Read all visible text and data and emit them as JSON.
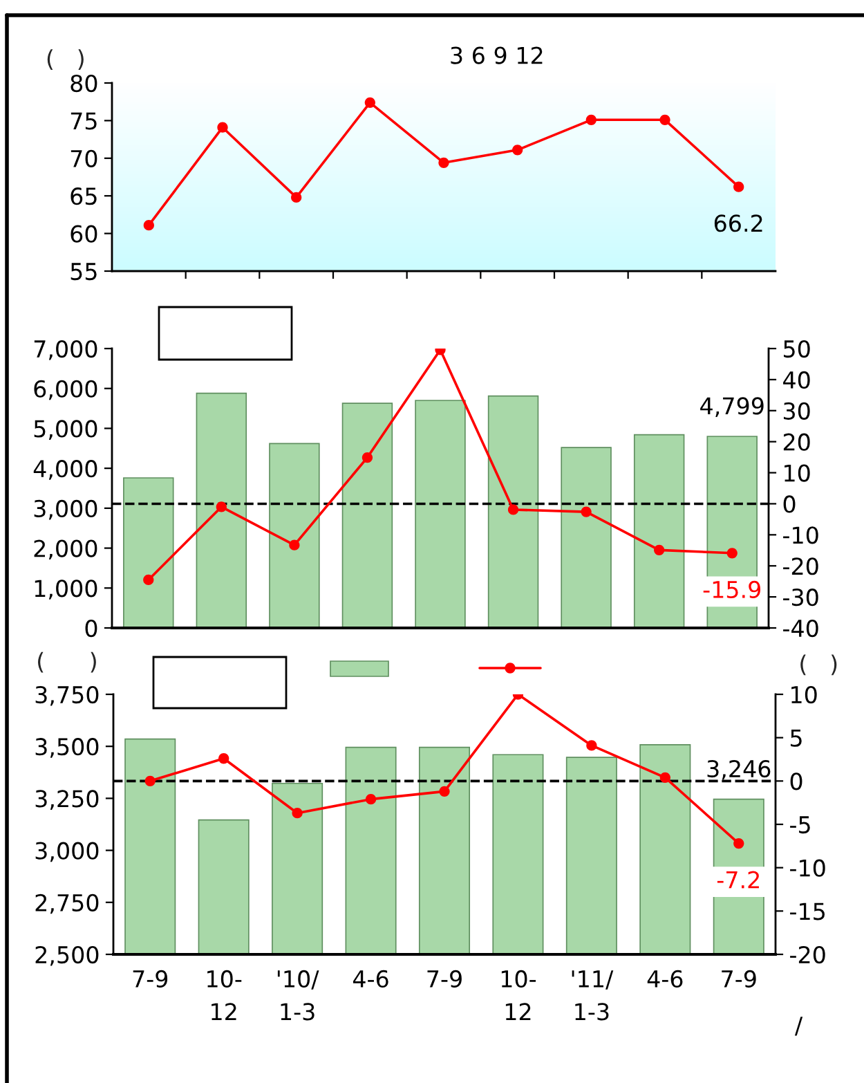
{
  "chart_data": [
    {
      "type": "line",
      "title": "3 6 9 12",
      "ylabel": "(   )",
      "categories": [
        null,
        null,
        null,
        null,
        null,
        null,
        null,
        null,
        null
      ],
      "series": [
        {
          "color": "#ff0000",
          "values": [
            61.1,
            74.1,
            64.8,
            77.4,
            69.4,
            71.1,
            75.1,
            75.1,
            66.2
          ],
          "value_labels": [
            null,
            null,
            null,
            null,
            null,
            null,
            null,
            null,
            "66.2"
          ]
        }
      ],
      "ylim": [
        55,
        80
      ],
      "yticks": [
        55,
        60,
        65,
        70,
        75,
        80
      ],
      "marker": "circle"
    },
    {
      "type": "bar",
      "categories": [
        null,
        null,
        null,
        null,
        null,
        null,
        null,
        null,
        null
      ],
      "series": [
        {
          "type": "bar",
          "color": "#a8d8a8",
          "values": [
            3760,
            5880,
            4620,
            5630,
            5700,
            5810,
            4520,
            4840,
            4799
          ],
          "value_labels": [
            null,
            null,
            null,
            null,
            null,
            null,
            null,
            null,
            "4,799"
          ]
        },
        {
          "type": "line",
          "axis": "y2",
          "color": "#ff0000",
          "values": [
            -24.5,
            -1.0,
            -13.3,
            14.9,
            49.6,
            -1.9,
            -2.6,
            -14.9,
            -15.9
          ],
          "value_labels": [
            null,
            null,
            null,
            null,
            null,
            null,
            null,
            null,
            "-15.9"
          ]
        }
      ],
      "ylim": [
        0,
        7000
      ],
      "yticks": [
        0,
        {
          "value": 1000,
          "label": "1,000"
        },
        {
          "value": 2000,
          "label": "2,000"
        },
        {
          "value": 3000,
          "label": "3,000"
        },
        {
          "value": 4000,
          "label": "4,000"
        },
        {
          "value": 5000,
          "label": "5,000"
        },
        {
          "value": 6000,
          "label": "6,000"
        },
        {
          "value": 7000,
          "label": "7,000"
        }
      ],
      "y2lim": [
        -40,
        50
      ],
      "y2ticks": [
        -40,
        -30,
        -20,
        -10,
        0,
        10,
        20,
        30,
        40,
        50
      ],
      "ref_lines": [
        {
          "axis": "y2",
          "value": 0,
          "color": "#000000",
          "line_style": "dashed"
        }
      ],
      "marker": "circle"
    },
    {
      "type": "bar",
      "ylabel": "(      )",
      "y2label": "(   )",
      "annotations": [
        "/"
      ],
      "categories": [
        "7-9",
        "10-\n12",
        "'10/\n1-3",
        "4-6",
        "7-9",
        "10-\n12",
        "'11/\n1-3",
        "4-6",
        "7-9"
      ],
      "series": [
        {
          "type": "bar",
          "color": "#a8d8a8",
          "values": [
            3535,
            3146,
            3322,
            3495,
            3495,
            3460,
            3447,
            3508,
            3246
          ],
          "value_labels": [
            null,
            null,
            null,
            null,
            null,
            null,
            null,
            null,
            "3,246"
          ]
        },
        {
          "type": "line",
          "axis": "y2",
          "color": "#ff0000",
          "values": [
            0.0,
            2.6,
            -3.7,
            -2.1,
            -1.2,
            10.0,
            4.1,
            0.4,
            -7.2
          ],
          "value_labels": [
            null,
            null,
            null,
            null,
            null,
            null,
            null,
            null,
            "-7.2"
          ]
        }
      ],
      "ylim": [
        2500,
        3750
      ],
      "yticks": [
        {
          "value": 2500,
          "label": "2,500"
        },
        {
          "value": 2750,
          "label": "2,750"
        },
        {
          "value": 3000,
          "label": "3,000"
        },
        {
          "value": 3250,
          "label": "3,250"
        },
        {
          "value": 3500,
          "label": "3,500"
        },
        {
          "value": 3750,
          "label": "3,750"
        }
      ],
      "y2lim": [
        -20,
        10
      ],
      "y2ticks": [
        -20,
        -15,
        -10,
        -5,
        0,
        5,
        10
      ],
      "ref_lines": [
        {
          "axis": "y2",
          "value": 0,
          "color": "#000000",
          "line_style": "dashed"
        }
      ],
      "marker": "circle"
    }
  ]
}
